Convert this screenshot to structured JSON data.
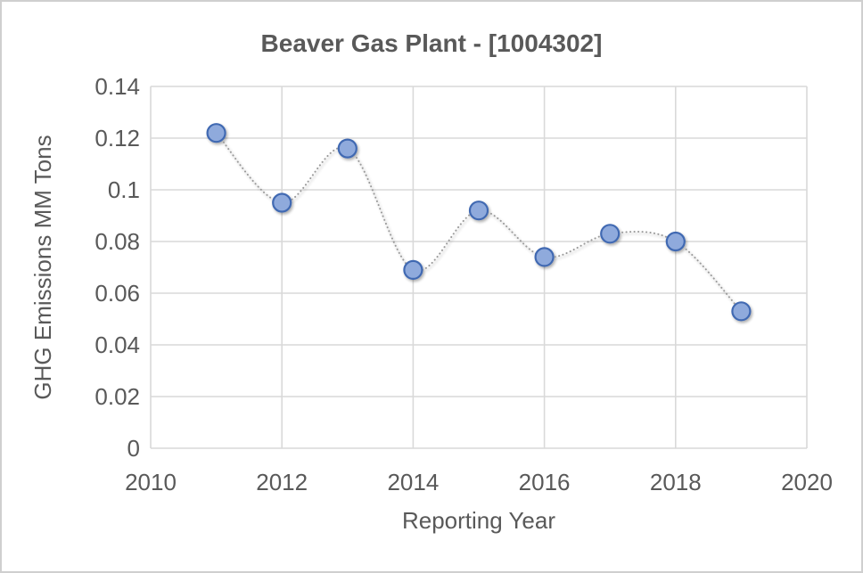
{
  "frame": {
    "background": "#ffffff",
    "border_color": "#cfcfcf"
  },
  "chart_data": {
    "type": "scatter",
    "title": "Beaver Gas Plant - [1004302]",
    "xlabel": "Reporting Year",
    "ylabel": "GHG Emissions MM Tons",
    "x": [
      2011,
      2012,
      2013,
      2014,
      2015,
      2016,
      2017,
      2018,
      2019
    ],
    "y": [
      0.122,
      0.095,
      0.116,
      0.069,
      0.092,
      0.074,
      0.083,
      0.08,
      0.053
    ],
    "xlim": [
      2010,
      2020
    ],
    "ylim": [
      0,
      0.14
    ],
    "x_ticks": [
      2010,
      2012,
      2014,
      2016,
      2018,
      2020
    ],
    "x_tick_labels": [
      "2010",
      "2012",
      "2014",
      "2016",
      "2018",
      "2020"
    ],
    "y_ticks": [
      0,
      0.02,
      0.04,
      0.06,
      0.08,
      0.1,
      0.12,
      0.14
    ],
    "y_tick_labels": [
      "0",
      "0.02",
      "0.04",
      "0.06",
      "0.08",
      "0.1",
      "0.12",
      "0.14"
    ],
    "grid": true,
    "legend": "none",
    "line_style": "dotted-smooth",
    "colors": {
      "marker_fill": "#8FAADC",
      "marker_stroke": "#4169B2",
      "line": "#999999",
      "grid": "#D9D9D9",
      "text": "#595959"
    }
  }
}
